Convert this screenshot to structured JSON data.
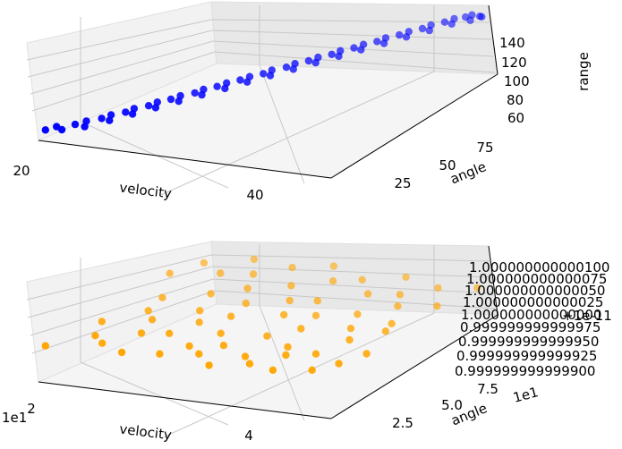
{
  "chart_data": [
    {
      "type": "scatter3d",
      "title": "",
      "xlabel": "velocity",
      "ylabel": "angle",
      "zlabel": "range",
      "xticks": [
        "20",
        "40"
      ],
      "yticks": [
        "25",
        "50",
        "75"
      ],
      "zticks": [
        "60",
        "80",
        "100",
        "120",
        "140"
      ],
      "xlim": [
        15,
        50
      ],
      "ylim": [
        10,
        85
      ],
      "zlim": [
        50,
        150
      ],
      "grid": true,
      "color": "#0000ff",
      "series": [
        {
          "x": [
            15.3,
            16.1,
            17.0,
            17.8,
            18.6,
            19.2,
            19.9,
            20.5,
            21.1,
            21.7,
            22.2,
            22.8,
            23.4,
            23.9,
            24.5,
            25.0,
            25.6,
            26.2,
            26.8,
            27.3,
            27.9,
            28.4,
            29.0,
            29.6,
            30.1,
            30.7,
            31.2,
            31.8,
            32.3,
            32.9,
            33.5,
            34.0,
            34.6,
            35.1,
            35.7,
            36.2,
            36.8,
            37.3,
            37.9,
            38.4,
            39.0,
            39.5,
            40.1,
            40.6,
            41.2,
            41.7,
            42.3,
            42.8,
            43.4,
            43.9,
            44.5,
            45.0,
            45.6,
            46.1,
            46.7,
            47.2,
            47.8,
            48.4,
            48.9
          ],
          "y": [
            12,
            14,
            13,
            16,
            18,
            15,
            20,
            22,
            19,
            24,
            26,
            23,
            28,
            30,
            27,
            32,
            34,
            31,
            36,
            38,
            35,
            40,
            42,
            39,
            44,
            46,
            43,
            48,
            50,
            47,
            52,
            54,
            51,
            56,
            58,
            55,
            60,
            62,
            59,
            64,
            66,
            63,
            68,
            70,
            67,
            72,
            74,
            71,
            76,
            78,
            75,
            80,
            82,
            79,
            83,
            84,
            81,
            83,
            82
          ],
          "z": [
            62,
            64,
            63,
            66,
            68,
            67,
            70,
            72,
            71,
            74,
            76,
            75,
            78,
            80,
            79,
            82,
            84,
            83,
            86,
            88,
            87,
            90,
            92,
            91,
            94,
            96,
            95,
            98,
            100,
            99,
            102,
            104,
            103,
            106,
            108,
            107,
            110,
            112,
            111,
            114,
            116,
            115,
            118,
            120,
            119,
            122,
            124,
            123,
            126,
            128,
            127,
            130,
            132,
            131,
            134,
            136,
            135,
            138,
            140
          ]
        }
      ]
    },
    {
      "type": "scatter3d",
      "title": "",
      "xlabel": "velocity",
      "ylabel": "angle",
      "zlabel": "",
      "x_offset_label": "1e1",
      "y_offset_label": "1e1",
      "z_offset_label": "+1e-11",
      "xticks": [
        "2",
        "4"
      ],
      "yticks": [
        "2.5",
        "5.0",
        "7.5"
      ],
      "zticks": [
        "0.999999999999900",
        "0.999999999999925",
        "0.999999999999950",
        "0.999999999999975",
        "1.000000000000000",
        "1.000000000000025",
        "1.000000000000050",
        "1.000000000000075",
        "1.000000000000100"
      ],
      "xlim": [
        1.5,
        5.0
      ],
      "ylim": [
        1.0,
        8.5
      ],
      "zlim": [
        0.9999999999999,
        1.0000000000001
      ],
      "grid": true,
      "color": "#ffa500",
      "series": [
        {
          "x": [
            1.53,
            1.61,
            1.7,
            1.78,
            1.86,
            1.92,
            1.99,
            2.05,
            2.11,
            2.17,
            2.22,
            2.28,
            2.34,
            2.39,
            2.45,
            2.5,
            2.56,
            2.62,
            2.68,
            2.73,
            2.79,
            2.84,
            2.9,
            2.96,
            3.01,
            3.07,
            3.12,
            3.18,
            3.23,
            3.29,
            3.35,
            3.4,
            3.46,
            3.51,
            3.57,
            3.62,
            3.68,
            3.73,
            3.79,
            3.84,
            3.9,
            3.95,
            4.01,
            4.06,
            4.12,
            4.17,
            4.23,
            4.28,
            4.34,
            4.39,
            4.45,
            4.5,
            4.56,
            4.61,
            4.67,
            4.72,
            4.78,
            4.84,
            4.89
          ],
          "y": [
            1.2,
            6.5,
            3.1,
            7.4,
            2.2,
            5.0,
            4.1,
            1.8,
            6.9,
            3.6,
            8.0,
            2.7,
            5.6,
            1.4,
            7.1,
            4.5,
            2.9,
            6.2,
            3.8,
            7.8,
            1.6,
            5.3,
            4.4,
            2.3,
            6.7,
            3.3,
            8.2,
            1.9,
            5.8,
            2.6,
            7.3,
            4.9,
            1.3,
            6.0,
            3.5,
            7.6,
            2.1,
            5.1,
            4.2,
            1.7,
            6.8,
            3.0,
            8.1,
            2.5,
            5.5,
            1.5,
            7.0,
            4.6,
            2.8,
            6.3,
            3.9,
            7.7,
            1.8,
            5.2,
            4.7,
            2.4,
            6.6,
            3.2,
            8.0
          ],
          "z": [
            1.0,
            1.0,
            1.0,
            1.0,
            1.0,
            1.0,
            1.0,
            1.0,
            1.0,
            1.0,
            1.0,
            1.0,
            1.0,
            1.0,
            1.0,
            1.0,
            1.0,
            1.0,
            1.0,
            1.0,
            1.0,
            1.0,
            1.0,
            1.0,
            1.0,
            1.0,
            1.0,
            1.0,
            1.0,
            1.0,
            1.0,
            1.0,
            1.0,
            1.0,
            1.0,
            1.0,
            1.0,
            1.0,
            1.0,
            1.0,
            1.0,
            1.0,
            1.0,
            1.0,
            1.0,
            1.0,
            1.0,
            1.0,
            1.0,
            1.0,
            1.0,
            1.0,
            1.0,
            1.0,
            1.0,
            1.0,
            1.0,
            1.0,
            1.0
          ]
        }
      ]
    }
  ]
}
